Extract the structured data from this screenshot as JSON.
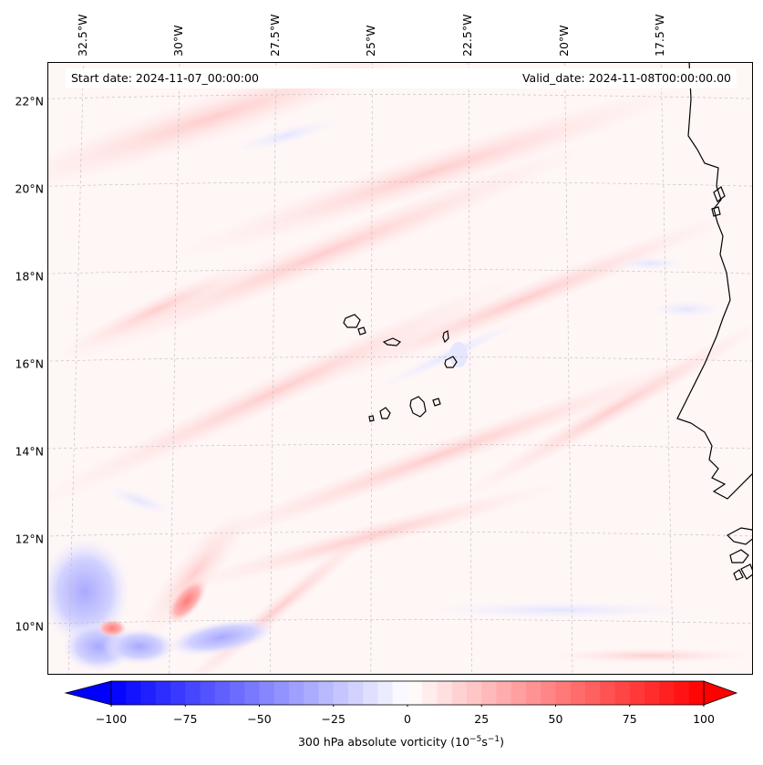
{
  "map": {
    "type": "contour-map",
    "variable_label": "300 hPa absolute vorticity (10",
    "variable_label_exp1": "−5",
    "variable_label_mid": "s",
    "variable_label_exp2": "−1",
    "variable_label_end": ")",
    "start_date_text": "Start date: 2024-11-07_00:00:00",
    "valid_date_text": "Valid_date: 2024-11-08T00:00:00.00",
    "extent": {
      "lon_min": -33.0,
      "lon_max": -15.5,
      "lat_min": 8.8,
      "lat_max": 22.8
    },
    "gridlines": true,
    "lon_ticks": [
      {
        "value": -32.5,
        "label": "32.5°W"
      },
      {
        "value": -30.0,
        "label": "30°W"
      },
      {
        "value": -27.5,
        "label": "27.5°W"
      },
      {
        "value": -25.0,
        "label": "25°W"
      },
      {
        "value": -22.5,
        "label": "22.5°W"
      },
      {
        "value": -20.0,
        "label": "20°W"
      },
      {
        "value": -17.5,
        "label": "17.5°W"
      }
    ],
    "lat_ticks": [
      {
        "value": 22,
        "label": "22°N"
      },
      {
        "value": 20,
        "label": "20°N"
      },
      {
        "value": 18,
        "label": "18°N"
      },
      {
        "value": 16,
        "label": "16°N"
      },
      {
        "value": 14,
        "label": "14°N"
      },
      {
        "value": 12,
        "label": "12°N"
      },
      {
        "value": 10,
        "label": "10°N"
      }
    ],
    "colorbar": {
      "min": -100,
      "max": 100,
      "extend": "both",
      "ticks": [
        "−100",
        "−75",
        "−50",
        "−25",
        "0",
        "25",
        "50",
        "75",
        "100"
      ],
      "tick_values": [
        -100,
        -75,
        -50,
        -25,
        0,
        25,
        50,
        75,
        100
      ],
      "levels": 40,
      "cmap": "bwr",
      "color_neg": "#0000ff",
      "color_zero": "#ffffff",
      "color_pos": "#ff0000"
    },
    "features": [
      {
        "name": "vorticity-max",
        "lon": -28.5,
        "lat": 10.7,
        "value": 60
      },
      {
        "name": "vorticity-band",
        "lon": -29.2,
        "lat": 11.6,
        "value": 30
      },
      {
        "name": "vorticity-min",
        "lon": -31.5,
        "lat": 10.5,
        "value": -45
      },
      {
        "name": "vorticity-min",
        "lon": -32.8,
        "lat": 11.5,
        "value": -35
      },
      {
        "name": "vorticity-min",
        "lon": -27.0,
        "lat": 9.8,
        "value": -30
      }
    ],
    "coastline": "west-africa",
    "islands": "cape-verde"
  }
}
